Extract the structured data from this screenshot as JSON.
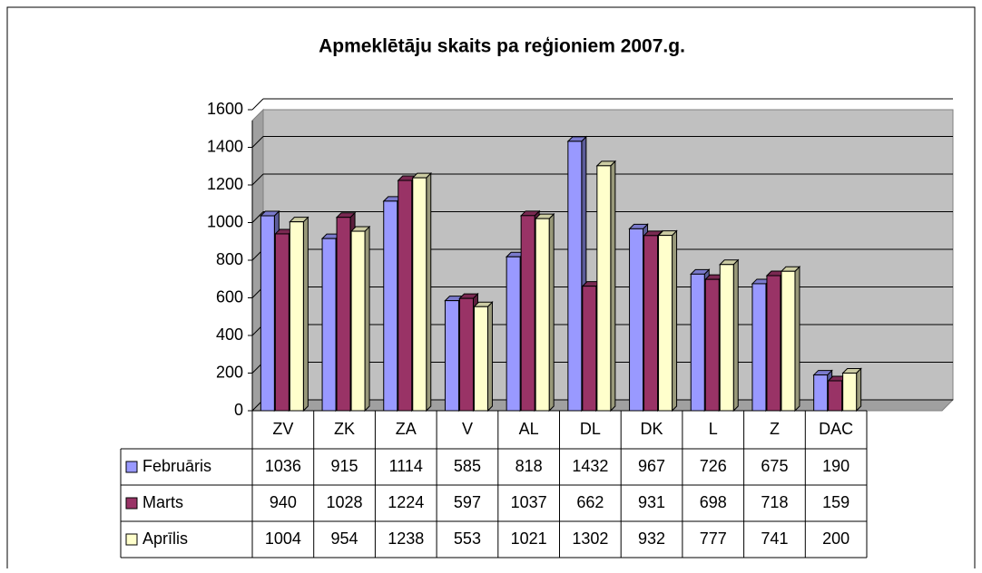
{
  "chart_data": {
    "type": "bar",
    "title": "Apmeklētāju skaits pa reģioniem 2007.g.",
    "categories": [
      "ZV",
      "ZK",
      "ZA",
      "V",
      "AL",
      "DL",
      "DK",
      "L",
      "Z",
      "DAC"
    ],
    "series": [
      {
        "name": "Februāris",
        "color": "#9999ff",
        "values": [
          1036,
          915,
          1114,
          585,
          818,
          1432,
          967,
          726,
          675,
          190
        ]
      },
      {
        "name": "Marts",
        "color": "#993366",
        "values": [
          940,
          1028,
          1224,
          597,
          1037,
          662,
          931,
          698,
          718,
          159
        ]
      },
      {
        "name": "Aprīlis",
        "color": "#ffffcc",
        "values": [
          1004,
          954,
          1238,
          553,
          1021,
          1302,
          932,
          777,
          741,
          200
        ]
      }
    ],
    "ylim": [
      0,
      1600
    ],
    "yticks": [
      0,
      200,
      400,
      600,
      800,
      1000,
      1200,
      1400,
      1600
    ],
    "grid": true
  }
}
